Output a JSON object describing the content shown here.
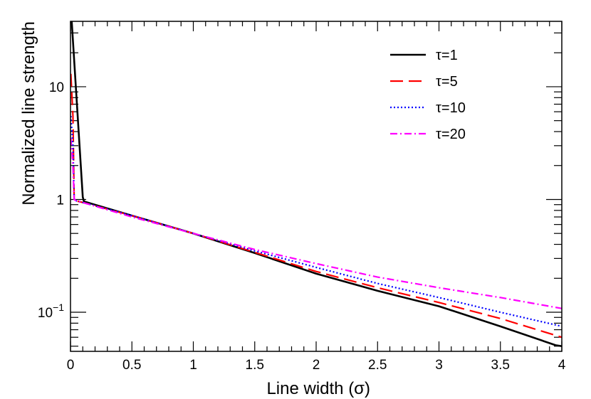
{
  "chart_data": {
    "type": "line",
    "title": "",
    "xlabel": "Line width (σ)",
    "ylabel": "Normalized line strength",
    "xscale": "linear",
    "yscale": "log",
    "xlim": [
      0,
      4
    ],
    "ylim": [
      0.045,
      38
    ],
    "x_ticks": [
      {
        "value": 0,
        "label": "0"
      },
      {
        "value": 0.5,
        "label": "0.5"
      },
      {
        "value": 1,
        "label": "1"
      },
      {
        "value": 1.5,
        "label": "1.5"
      },
      {
        "value": 2,
        "label": "2"
      },
      {
        "value": 2.5,
        "label": "2.5"
      },
      {
        "value": 3,
        "label": "3"
      },
      {
        "value": 3.5,
        "label": "3.5"
      },
      {
        "value": 4,
        "label": "4"
      }
    ],
    "y_ticks": [
      {
        "value": 0.1,
        "label_base": "10",
        "label_exp": "−1"
      },
      {
        "value": 1,
        "label_base": "1",
        "label_exp": ""
      },
      {
        "value": 10,
        "label_base": "10",
        "label_exp": ""
      }
    ],
    "legend_position": "top-right",
    "series": [
      {
        "name": "τ=1",
        "color": "#000000",
        "style": "solid",
        "x": [
          0.01,
          0.1,
          0.11,
          0.5,
          1.0,
          1.5,
          2.0,
          2.5,
          3.0,
          3.5,
          3.95,
          4.0
        ],
        "y": [
          38,
          1.05,
          0.96,
          0.72,
          0.5,
          0.335,
          0.22,
          0.155,
          0.113,
          0.075,
          0.051,
          0.05
        ]
      },
      {
        "name": "τ=5",
        "color": "#ff0000",
        "style": "dashed",
        "x": [
          0.003,
          0.02,
          0.03,
          0.05,
          0.1,
          0.5,
          1.0,
          1.5,
          2.0,
          2.5,
          3.0,
          3.5,
          4.0
        ],
        "y": [
          13,
          5.5,
          1.0,
          0.97,
          0.94,
          0.72,
          0.5,
          0.34,
          0.23,
          0.165,
          0.122,
          0.088,
          0.06
        ]
      },
      {
        "name": "τ=10",
        "color": "#0000ff",
        "style": "dotted",
        "x": [
          0.003,
          0.02,
          0.03,
          0.05,
          0.1,
          0.5,
          1.0,
          1.5,
          2.0,
          2.5,
          3.0,
          3.5,
          4.0
        ],
        "y": [
          5.5,
          3.0,
          1.0,
          0.97,
          0.94,
          0.72,
          0.5,
          0.35,
          0.25,
          0.18,
          0.135,
          0.1,
          0.075
        ]
      },
      {
        "name": "τ=20",
        "color": "#ff00ff",
        "style": "dashdot",
        "x": [
          0.003,
          0.02,
          0.03,
          0.05,
          0.1,
          0.5,
          1.0,
          1.5,
          2.0,
          2.5,
          3.0,
          3.5,
          4.0
        ],
        "y": [
          3.5,
          2.0,
          1.0,
          0.97,
          0.94,
          0.7,
          0.5,
          0.36,
          0.27,
          0.205,
          0.165,
          0.135,
          0.108
        ]
      }
    ]
  }
}
